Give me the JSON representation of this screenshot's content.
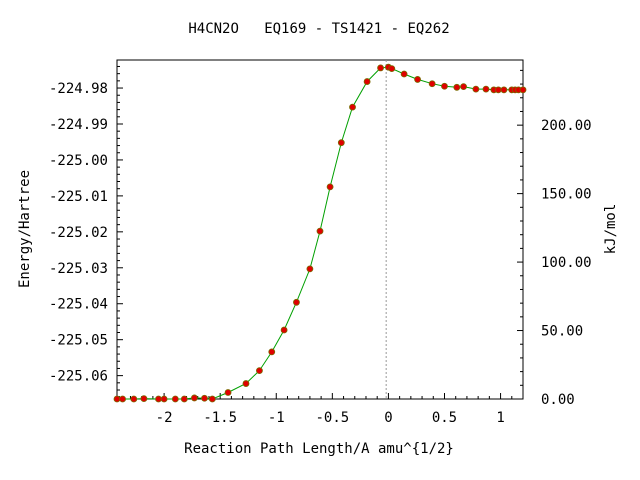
{
  "chart_data": {
    "type": "line",
    "title": "H4CN2O   EQ169 - TS1421 - EQ262",
    "xlabel": "Reaction Path Length/A amu^{1/2}",
    "ylabel": "Energy/Hartree",
    "y2label": "kJ/mol",
    "xlim": [
      -2.42,
      1.2
    ],
    "ylim": [
      -225.0665,
      -224.9722
    ],
    "x_ticks": [
      -2,
      -1.5,
      -1,
      -0.5,
      0,
      0.5,
      1
    ],
    "x_tick_labels": [
      "-2",
      "-1.5",
      "-1",
      "-0.5",
      "0",
      "0.5",
      "1"
    ],
    "y_ticks": [
      -224.98,
      -224.99,
      -225.0,
      -225.01,
      -225.02,
      -225.03,
      -225.04,
      -225.05,
      -225.06
    ],
    "y_tick_labels": [
      "-224.98",
      "-224.99",
      "-225.00",
      "-225.01",
      "-225.02",
      "-225.03",
      "-225.04",
      "-225.05",
      "-225.06"
    ],
    "y2_ticks": [
      0,
      50,
      100,
      150,
      200
    ],
    "y2_tick_labels": [
      "0.00",
      "50.00",
      "100.00",
      "150.00",
      "200.00"
    ],
    "y2_zero_hartree": -225.0665,
    "kj_per_hartree": 2625.5,
    "ts_x": -0.02,
    "grid": false,
    "colors": {
      "line": "#00a000",
      "marker": "#e00000",
      "marker_edge": "#7a6a00",
      "ts_line": "#999999"
    },
    "series": [
      {
        "x": [
          -2.42,
          -2.37,
          -2.27,
          -2.18,
          -2.05,
          -2.0,
          -1.9,
          -1.82,
          -1.73,
          -1.64,
          -1.57,
          -1.43,
          -1.27,
          -1.15,
          -1.04,
          -0.93,
          -0.82,
          -0.7,
          -0.61,
          -0.52,
          -0.42,
          -0.32,
          -0.19,
          -0.07,
          0.0,
          0.03,
          0.14,
          0.26,
          0.39,
          0.5,
          0.61,
          0.67,
          0.78,
          0.87,
          0.94,
          0.98,
          1.03,
          1.1,
          1.13,
          1.16,
          1.2
        ],
        "y": [
          -225.0665,
          -225.0665,
          -225.0665,
          -225.0664,
          -225.0665,
          -225.0665,
          -225.0665,
          -225.0665,
          -225.0662,
          -225.0663,
          -225.0665,
          -225.0647,
          -225.0622,
          -225.0586,
          -225.0534,
          -225.0473,
          -225.0396,
          -225.0303,
          -225.0198,
          -225.0075,
          -224.9952,
          -224.9853,
          -224.9782,
          -224.9744,
          -224.9742,
          -224.9746,
          -224.9761,
          -224.9776,
          -224.9788,
          -224.9795,
          -224.9798,
          -224.9796,
          -224.9803,
          -224.9803,
          -224.9805,
          -224.9805,
          -224.9805,
          -224.9805,
          -224.9805,
          -224.9805,
          -224.9805
        ]
      }
    ]
  }
}
